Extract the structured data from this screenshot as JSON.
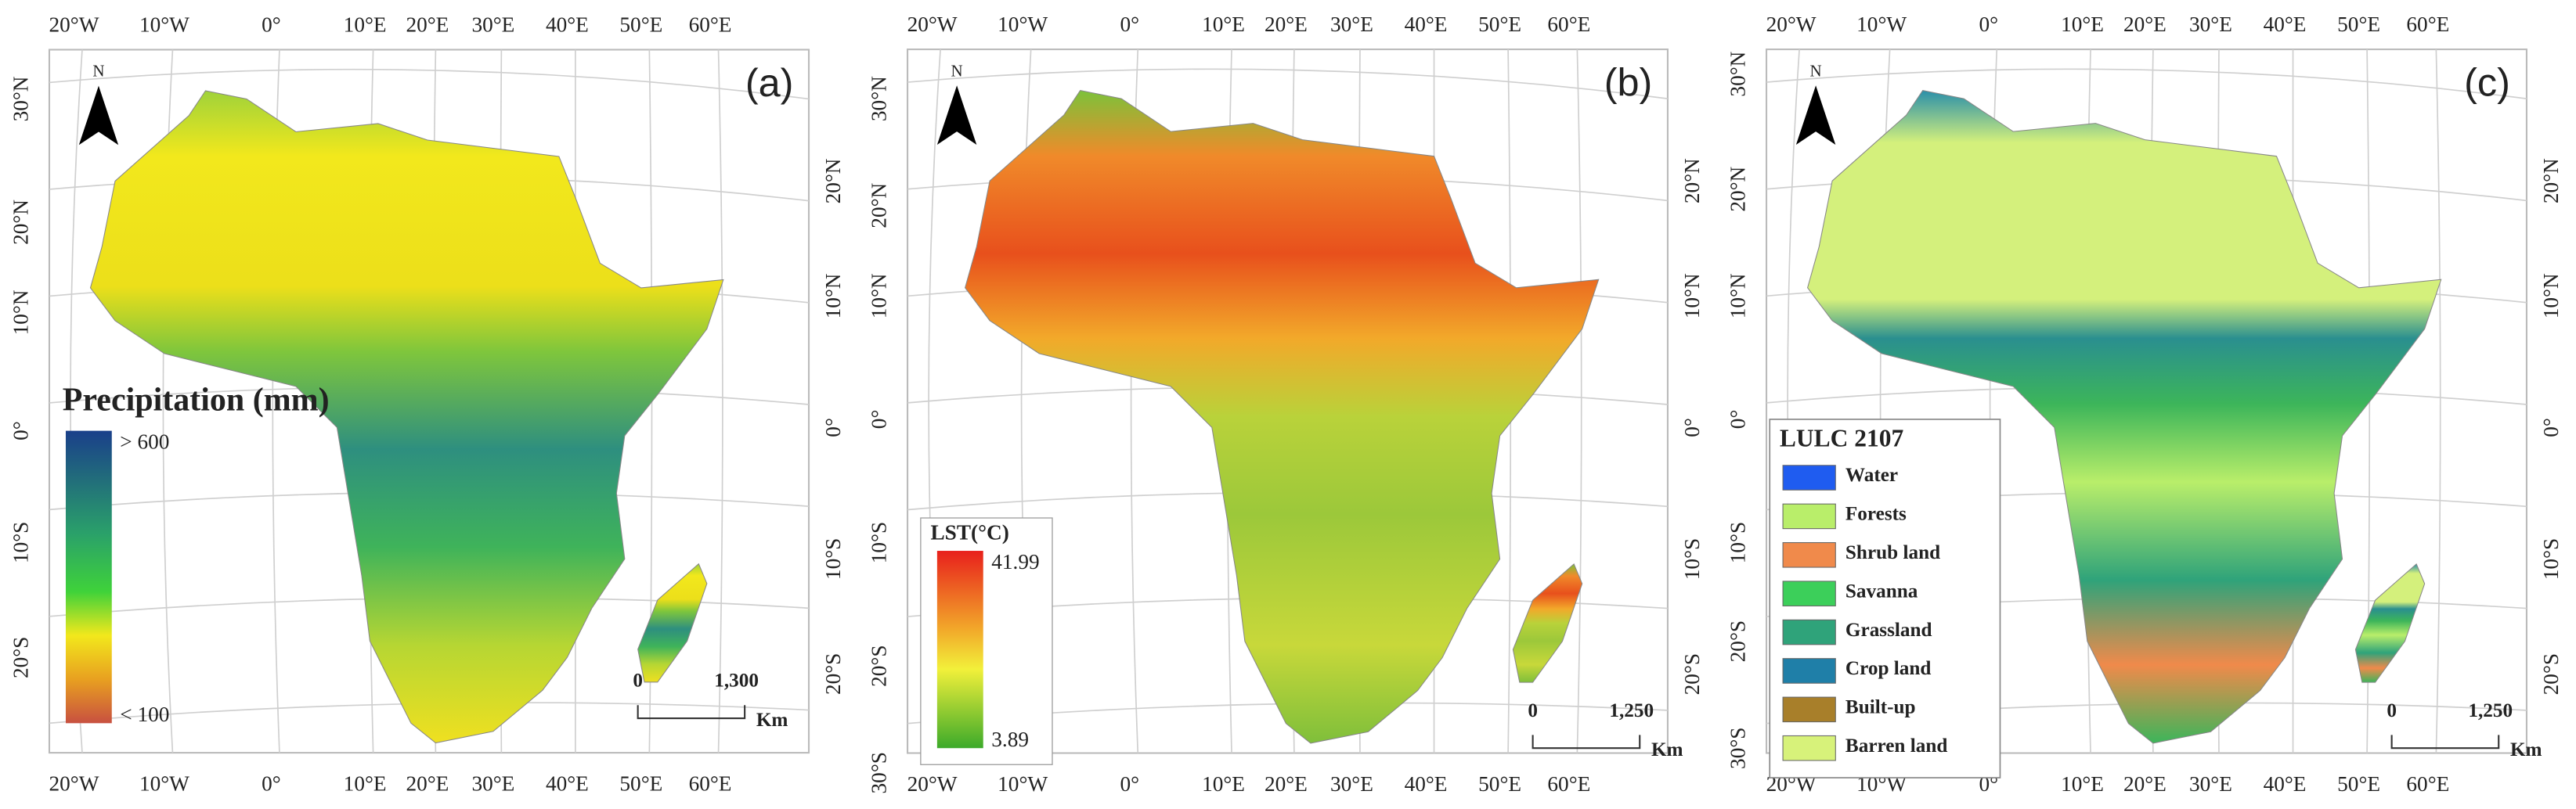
{
  "panels": [
    {
      "label": "(a)",
      "north": "N",
      "top_lon_labels": [
        "20°W",
        "10°W",
        "0°",
        "10°E",
        "20°E",
        "30°E",
        "40°E",
        "50°E",
        "60°E"
      ],
      "bottom_lon_labels": [
        "20°W",
        "10°W",
        "0°",
        "10°E",
        "20°E",
        "30°E",
        "40°E",
        "50°E",
        "60°E"
      ],
      "left_lat_labels": [
        "30°N",
        "20°N",
        "10°N",
        "0°",
        "10°S",
        "20°S"
      ],
      "right_lat_labels": [
        "20°N",
        "10°N",
        "0°",
        "10°S",
        "20°S"
      ],
      "legend": {
        "title": "Precipitation (mm)",
        "max": "> 600",
        "min": "< 100"
      },
      "scale": {
        "start": "0",
        "end": "1,300",
        "unit": "Km"
      }
    },
    {
      "label": "(b)",
      "north": "N",
      "top_lon_labels": [
        "20°W",
        "10°W",
        "0°",
        "10°E",
        "20°E",
        "30°E",
        "40°E",
        "50°E",
        "60°E"
      ],
      "bottom_lon_labels": [
        "20°W",
        "10°W",
        "0°",
        "10°E",
        "20°E",
        "30°E",
        "40°E",
        "50°E",
        "60°E"
      ],
      "left_lat_labels": [
        "30°N",
        "20°N",
        "10°N",
        "0°",
        "10°S",
        "20°S",
        "30°S"
      ],
      "right_lat_labels": [
        "20°N",
        "10°N",
        "0°",
        "10°S",
        "20°S"
      ],
      "legend": {
        "title": "LST(°C)",
        "max": "41.99",
        "min": "3.89"
      },
      "scale": {
        "start": "0",
        "end": "1,250",
        "unit": "Km"
      }
    },
    {
      "label": "(c)",
      "north": "N",
      "top_lon_labels": [
        "20°W",
        "10°W",
        "0°",
        "10°E",
        "20°E",
        "30°E",
        "40°E",
        "50°E",
        "60°E"
      ],
      "bottom_lon_labels": [
        "20°W",
        "10°W",
        "0°",
        "10°E",
        "20°E",
        "30°E",
        "40°E",
        "50°E",
        "60°E"
      ],
      "left_lat_labels": [
        "30°N",
        "20°N",
        "10°N",
        "0°",
        "10°S",
        "20°S",
        "30°S"
      ],
      "right_lat_labels": [
        "20°N",
        "10°N",
        "0°",
        "10°S",
        "20°S"
      ],
      "legend": {
        "title": "LULC 2107",
        "items": [
          {
            "name": "Water",
            "color": "#1f5cf0"
          },
          {
            "name": "Forests",
            "color": "#b9ee6a"
          },
          {
            "name": "Shrub land",
            "color": "#f08a4b"
          },
          {
            "name": "Savanna",
            "color": "#3ccf5a"
          },
          {
            "name": "Grassland",
            "color": "#2fa37a"
          },
          {
            "name": "Crop land",
            "color": "#1f7fa8"
          },
          {
            "name": "Built-up",
            "color": "#a87f2a"
          },
          {
            "name": "Barren land",
            "color": "#d7f27a"
          }
        ]
      },
      "scale": {
        "start": "0",
        "end": "1,250",
        "unit": "Km"
      }
    }
  ]
}
